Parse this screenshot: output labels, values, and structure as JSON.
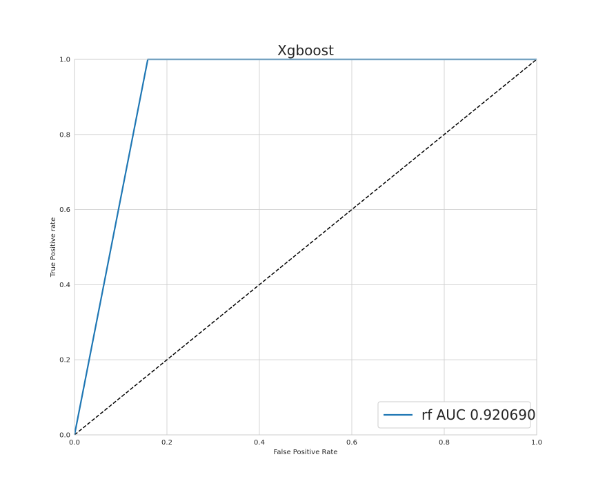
{
  "chart_data": {
    "type": "line",
    "title": "Xgboost",
    "xlabel": "False Positive Rate",
    "ylabel": "True Positive rate",
    "xlim": [
      0.0,
      1.0
    ],
    "ylim": [
      0.0,
      1.0
    ],
    "xticks": [
      "0.0",
      "0.2",
      "0.4",
      "0.6",
      "0.8",
      "1.0"
    ],
    "yticks": [
      "0.0",
      "0.2",
      "0.4",
      "0.6",
      "0.8",
      "1.0"
    ],
    "grid": true,
    "legend_position": "lower-right",
    "series": [
      {
        "name": "rf AUC 0.920690",
        "color": "#1f77b4",
        "style": "solid",
        "x": [
          0.0,
          0.1586,
          1.0
        ],
        "y": [
          0.0,
          1.0,
          1.0
        ]
      },
      {
        "color": "#000000",
        "style": "dashed",
        "x": [
          0.0,
          1.0
        ],
        "y": [
          0.0,
          1.0
        ]
      }
    ]
  }
}
